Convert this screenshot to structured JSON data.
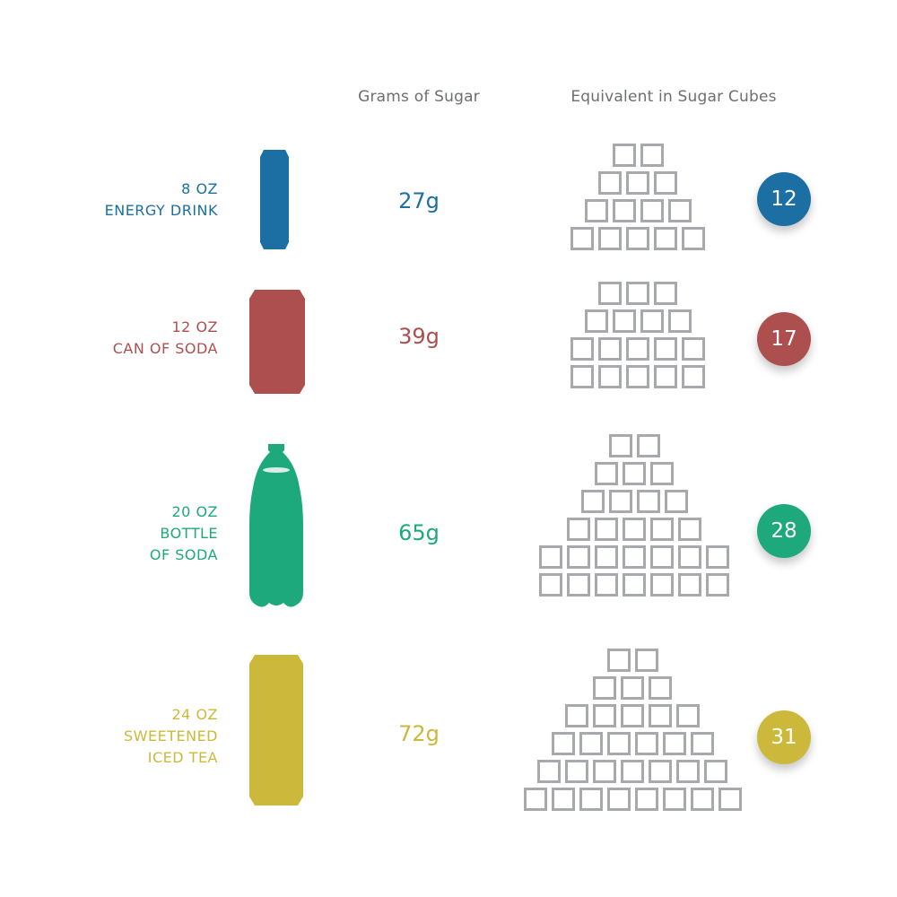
{
  "headers": {
    "grams": "Grams of Sugar",
    "cubes": "Equivalent in Sugar Cubes"
  },
  "colors": {
    "header_text": "#6d6e71",
    "cube_outline": "#a7a9ac"
  },
  "drinks": [
    {
      "size": "8 OZ",
      "name_lines": [
        "ENERGY DRINK"
      ],
      "grams": "27g",
      "cubes": "12",
      "color": "#1b6fa3",
      "container": "slim-can-icon"
    },
    {
      "size": "12 OZ",
      "name_lines": [
        "CAN OF SODA"
      ],
      "grams": "39g",
      "cubes": "17",
      "color": "#ad4f4e",
      "container": "soda-can-icon"
    },
    {
      "size": "20 OZ",
      "name_lines": [
        "BOTTLE",
        "OF SODA"
      ],
      "grams": "65g",
      "cubes": "28",
      "color": "#1ea97c",
      "container": "soda-bottle-icon"
    },
    {
      "size": "24 OZ",
      "name_lines": [
        "SWEETENED",
        "ICED TEA"
      ],
      "grams": "72g",
      "cubes": "31",
      "color": "#ccb93b",
      "container": "tall-can-icon"
    }
  ]
}
